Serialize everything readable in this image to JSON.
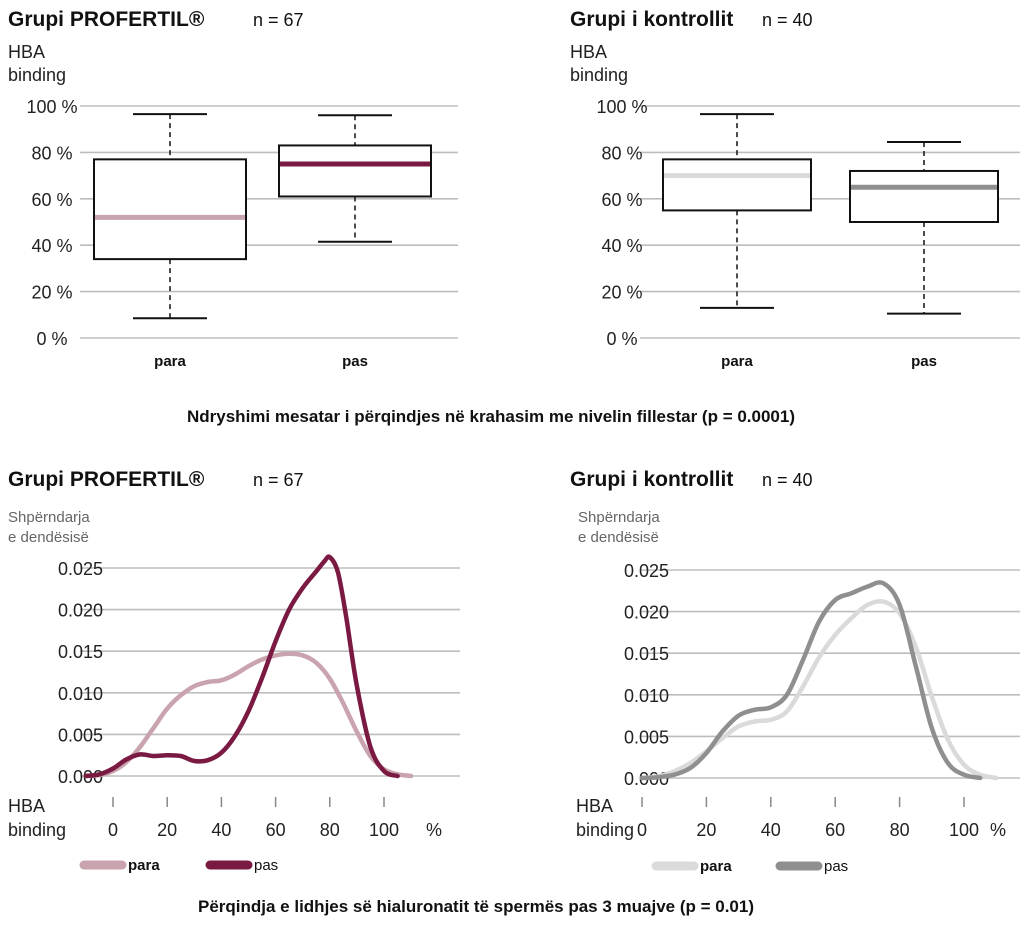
{
  "palette": {
    "profertil_before": "#c9a3ad",
    "profertil_after": "#7a1a42",
    "control_before": "#dadada",
    "control_after": "#8f8f8f",
    "grid": "#bdbdbd",
    "box": "#111111"
  },
  "top_caption": "Ndryshimi mesatar i përqindjes në krahasim me nivelin fillestar (p = 0.0001)",
  "bottom_caption": "Përqindja e lidhjes së hialuronatit të spermës pas 3 muajve (p = 0.01)",
  "chart_data": [
    {
      "type": "box",
      "title": "Grupi PROFERTIL®",
      "n_label": "n = 67",
      "ylabel": [
        "HBA",
        "binding"
      ],
      "ylim": [
        0,
        100
      ],
      "yticks": [
        {
          "v": 0,
          "label": "0 %"
        },
        {
          "v": 20,
          "label": "20 %"
        },
        {
          "v": 40,
          "label": "40 %"
        },
        {
          "v": 60,
          "label": "60 %"
        },
        {
          "v": 80,
          "label": "80 %"
        },
        {
          "v": 100,
          "label": "100 %"
        }
      ],
      "categories": [
        "para",
        "pas"
      ],
      "boxes": [
        {
          "category": "para",
          "min": 8.5,
          "q1": 34,
          "median": 52,
          "q3": 77,
          "max": 96.5,
          "color_key": "profertil_before"
        },
        {
          "category": "pas",
          "min": 41.5,
          "q1": 61,
          "median": 75,
          "q3": 83,
          "max": 96,
          "color_key": "profertil_after"
        }
      ]
    },
    {
      "type": "box",
      "title": "Grupi i kontrollit",
      "n_label": "n = 40",
      "ylabel": [
        "HBA",
        "binding"
      ],
      "ylim": [
        0,
        100
      ],
      "yticks": [
        {
          "v": 0,
          "label": "0 %"
        },
        {
          "v": 20,
          "label": "20 %"
        },
        {
          "v": 40,
          "label": "40 %"
        },
        {
          "v": 60,
          "label": "60 %"
        },
        {
          "v": 80,
          "label": "80 %"
        },
        {
          "v": 100,
          "label": "100 %"
        }
      ],
      "categories": [
        "para",
        "pas"
      ],
      "boxes": [
        {
          "category": "para",
          "min": 13,
          "q1": 55,
          "median": 70,
          "q3": 77,
          "max": 96.5,
          "color_key": "control_before"
        },
        {
          "category": "pas",
          "min": 10.5,
          "q1": 50,
          "median": 65,
          "q3": 72,
          "max": 84.5,
          "color_key": "control_after"
        }
      ]
    },
    {
      "type": "line",
      "title": "Grupi PROFERTIL®",
      "n_label": "n = 67",
      "ylabel": [
        "Shpërndarja",
        "e dendësisë"
      ],
      "xlabel": [
        "HBA",
        "binding"
      ],
      "x_unit": "%",
      "xlim": [
        -10,
        110
      ],
      "ylim": [
        0,
        0.025
      ],
      "xticks": [
        0,
        20,
        40,
        60,
        80,
        100
      ],
      "yticks": [
        {
          "v": 0,
          "label": "0.000"
        },
        {
          "v": 0.005,
          "label": "0.005"
        },
        {
          "v": 0.01,
          "label": "0.010"
        },
        {
          "v": 0.015,
          "label": "0.015"
        },
        {
          "v": 0.02,
          "label": "0.020"
        },
        {
          "v": 0.025,
          "label": "0.025"
        }
      ],
      "series": [
        {
          "name": "para",
          "color_key": "profertil_before",
          "x": [
            -10,
            -5,
            0,
            5,
            10,
            15,
            20,
            25,
            30,
            35,
            40,
            45,
            50,
            55,
            60,
            65,
            70,
            75,
            80,
            85,
            90,
            95,
            100,
            105,
            110
          ],
          "y": [
            0.0,
            0.0001,
            0.0006,
            0.0017,
            0.0035,
            0.0058,
            0.0081,
            0.0097,
            0.0108,
            0.0113,
            0.0115,
            0.0122,
            0.0132,
            0.014,
            0.0145,
            0.0147,
            0.0145,
            0.0136,
            0.0117,
            0.0087,
            0.0053,
            0.0024,
            0.0008,
            0.0002,
            0.0
          ]
        },
        {
          "name": "pas",
          "color_key": "profertil_after",
          "x": [
            -10,
            -5,
            0,
            5,
            10,
            15,
            20,
            25,
            30,
            35,
            40,
            45,
            50,
            55,
            60,
            65,
            70,
            75,
            78,
            80,
            83,
            86,
            90,
            95,
            100,
            105
          ],
          "y": [
            0.0,
            0.0002,
            0.0009,
            0.002,
            0.0026,
            0.0024,
            0.0025,
            0.0024,
            0.0018,
            0.0019,
            0.0028,
            0.0048,
            0.0078,
            0.0118,
            0.0162,
            0.02,
            0.0226,
            0.0246,
            0.0258,
            0.0263,
            0.0245,
            0.0192,
            0.0108,
            0.0035,
            0.0006,
            0.0
          ]
        }
      ],
      "legend_position": "bottom-left"
    },
    {
      "type": "line",
      "title": "Grupi i kontrollit",
      "n_label": "n = 40",
      "ylabel": [
        "Shpërndarja",
        "e dendësisë"
      ],
      "xlabel": [
        "HBA",
        "binding"
      ],
      "x_unit": "%",
      "xlim": [
        0,
        110
      ],
      "ylim": [
        0,
        0.025
      ],
      "xticks": [
        0,
        20,
        40,
        60,
        80,
        100
      ],
      "yticks": [
        {
          "v": 0,
          "label": "0.000"
        },
        {
          "v": 0.005,
          "label": "0.005"
        },
        {
          "v": 0.01,
          "label": "0.010"
        },
        {
          "v": 0.015,
          "label": "0.015"
        },
        {
          "v": 0.02,
          "label": "0.020"
        },
        {
          "v": 0.025,
          "label": "0.025"
        }
      ],
      "series": [
        {
          "name": "para",
          "color_key": "control_before",
          "x": [
            0,
            5,
            10,
            15,
            20,
            25,
            30,
            35,
            40,
            45,
            50,
            55,
            60,
            65,
            70,
            75,
            80,
            85,
            90,
            95,
            100,
            105,
            110
          ],
          "y": [
            0.0,
            0.0002,
            0.0008,
            0.0018,
            0.0032,
            0.0048,
            0.0062,
            0.0068,
            0.007,
            0.008,
            0.011,
            0.0145,
            0.0172,
            0.0192,
            0.0208,
            0.0212,
            0.0198,
            0.0158,
            0.0098,
            0.0046,
            0.0016,
            0.0004,
            0.0
          ]
        },
        {
          "name": "pas",
          "color_key": "control_after",
          "x": [
            0,
            5,
            10,
            15,
            20,
            25,
            30,
            35,
            40,
            45,
            50,
            55,
            60,
            65,
            70,
            75,
            80,
            85,
            90,
            95,
            100,
            105
          ],
          "y": [
            0.0,
            0.0001,
            0.0004,
            0.0012,
            0.003,
            0.0056,
            0.0075,
            0.0082,
            0.0085,
            0.01,
            0.0142,
            0.0188,
            0.0214,
            0.0222,
            0.023,
            0.0234,
            0.0208,
            0.0135,
            0.006,
            0.0018,
            0.0004,
            0.0
          ]
        }
      ],
      "legend_position": "bottom-left"
    }
  ]
}
